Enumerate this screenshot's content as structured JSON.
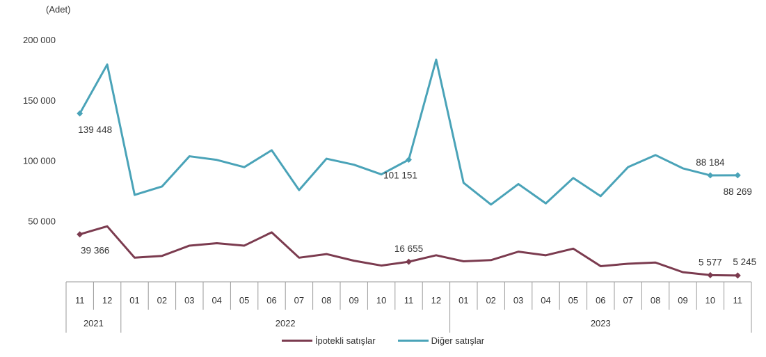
{
  "chart_data": {
    "type": "line",
    "unit_label": "(Adet)",
    "ylim": [
      0,
      200000
    ],
    "yticks": [
      {
        "value": 50000,
        "label": "50 000"
      },
      {
        "value": 100000,
        "label": "100 000"
      },
      {
        "value": 150000,
        "label": "150 000"
      },
      {
        "value": 200000,
        "label": "200 000"
      }
    ],
    "x_month_labels": [
      "11",
      "12",
      "01",
      "02",
      "03",
      "04",
      "05",
      "06",
      "07",
      "08",
      "09",
      "10",
      "11",
      "12",
      "01",
      "02",
      "03",
      "04",
      "05",
      "06",
      "07",
      "08",
      "09",
      "10",
      "11"
    ],
    "x_year_groups": [
      {
        "label": "2021",
        "start": 0,
        "end": 1
      },
      {
        "label": "2022",
        "start": 2,
        "end": 13
      },
      {
        "label": "2023",
        "start": 14,
        "end": 24
      }
    ],
    "series": [
      {
        "name": "Diğer satışlar",
        "color": "#4aa3b8",
        "values": [
          139448,
          180000,
          72000,
          79000,
          104000,
          101000,
          95000,
          109000,
          76000,
          102000,
          97000,
          89000,
          101151,
          184000,
          82000,
          64000,
          81000,
          65000,
          86000,
          71000,
          95000,
          105000,
          94000,
          88184,
          88269
        ],
        "markers": [
          0,
          12,
          23,
          24
        ],
        "data_labels": [
          {
            "index": 0,
            "text": "139 448",
            "pos": "below"
          },
          {
            "index": 12,
            "text": "101 151",
            "pos": "below-left"
          },
          {
            "index": 23,
            "text": "88 184",
            "pos": "above"
          },
          {
            "index": 24,
            "text": "88 269",
            "pos": "below"
          }
        ]
      },
      {
        "name": "İpotekli satışlar",
        "color": "#7b3b4f",
        "values": [
          39366,
          46000,
          20000,
          21500,
          30000,
          32000,
          30000,
          41000,
          20000,
          23000,
          17500,
          13500,
          16655,
          22000,
          17000,
          18000,
          25000,
          22000,
          27500,
          13000,
          15000,
          16000,
          8000,
          5577,
          5245
        ],
        "markers": [
          0,
          12,
          23,
          24
        ],
        "data_labels": [
          {
            "index": 0,
            "text": "39 366",
            "pos": "below"
          },
          {
            "index": 12,
            "text": "16 655",
            "pos": "above"
          },
          {
            "index": 23,
            "text": "5 577",
            "pos": "above"
          },
          {
            "index": 24,
            "text": "5 245",
            "pos": "above-right"
          }
        ]
      }
    ],
    "legend_position": "bottom",
    "legend_order": [
      "İpotekli satışlar",
      "Diğer satışlar"
    ]
  }
}
